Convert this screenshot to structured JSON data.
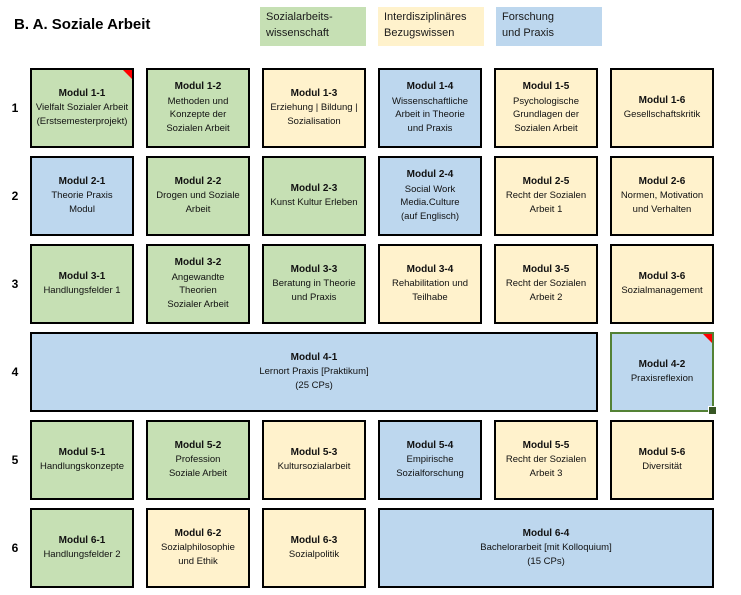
{
  "title": "B. A. Soziale Arbeit",
  "colors": {
    "green": "#c6e0b4",
    "yellow": "#fff2cc",
    "blue": "#bdd7ee",
    "border": "#000000",
    "selection": "#548235",
    "handle": "#375623",
    "marker": "#ff0000"
  },
  "legend": [
    {
      "color": "green",
      "lines": [
        "Sozialarbeits-",
        "wissenschaft"
      ]
    },
    {
      "color": "yellow",
      "lines": [
        "Interdisziplinäres",
        "Bezugswissen"
      ]
    },
    {
      "color": "blue",
      "lines": [
        "Forschung",
        "und Praxis"
      ]
    }
  ],
  "rows": [
    {
      "number": "1",
      "modules": [
        {
          "id": "Modul 1-1",
          "lines": [
            "Vielfalt Sozialer Arbeit",
            "(Erstsemesterprojekt)"
          ],
          "color": "green",
          "comment_marker": true
        },
        {
          "id": "Modul 1-2",
          "lines": [
            "Methoden und",
            "Konzepte der",
            "Sozialen Arbeit"
          ],
          "color": "green"
        },
        {
          "id": "Modul 1-3",
          "lines": [
            "Erziehung | Bildung |",
            "Sozialisation"
          ],
          "color": "yellow"
        },
        {
          "id": "Modul 1-4",
          "lines": [
            "Wissenschaftliche",
            "Arbeit in Theorie",
            "und Praxis"
          ],
          "color": "blue"
        },
        {
          "id": "Modul 1-5",
          "lines": [
            "Psychologische",
            "Grundlagen der",
            "Sozialen Arbeit"
          ],
          "color": "yellow"
        },
        {
          "id": "Modul 1-6",
          "lines": [
            "Gesellschaftskritik"
          ],
          "color": "yellow"
        }
      ]
    },
    {
      "number": "2",
      "modules": [
        {
          "id": "Modul 2-1",
          "lines": [
            "Theorie Praxis",
            "Modul"
          ],
          "color": "blue"
        },
        {
          "id": "Modul 2-2",
          "lines": [
            "Drogen und Soziale",
            "Arbeit"
          ],
          "color": "green"
        },
        {
          "id": "Modul 2-3",
          "lines": [
            "Kunst Kultur Erleben"
          ],
          "color": "green"
        },
        {
          "id": "Modul 2-4",
          "lines": [
            "Social Work",
            "Media.Culture",
            "(auf Englisch)"
          ],
          "color": "blue"
        },
        {
          "id": "Modul 2-5",
          "lines": [
            "Recht der Sozialen",
            "Arbeit 1"
          ],
          "color": "yellow"
        },
        {
          "id": "Modul 2-6",
          "lines": [
            "Normen, Motivation",
            "und Verhalten"
          ],
          "color": "yellow"
        }
      ]
    },
    {
      "number": "3",
      "modules": [
        {
          "id": "Modul 3-1",
          "lines": [
            "Handlungsfelder 1"
          ],
          "color": "green"
        },
        {
          "id": "Modul 3-2",
          "lines": [
            "Angewandte",
            "Theorien",
            "Sozialer Arbeit"
          ],
          "color": "green"
        },
        {
          "id": "Modul 3-3",
          "lines": [
            "Beratung in Theorie",
            "und Praxis"
          ],
          "color": "green"
        },
        {
          "id": "Modul 3-4",
          "lines": [
            "Rehabilitation und",
            "Teilhabe"
          ],
          "color": "yellow"
        },
        {
          "id": "Modul 3-5",
          "lines": [
            "Recht der Sozialen",
            "Arbeit 2"
          ],
          "color": "yellow"
        },
        {
          "id": "Modul 3-6",
          "lines": [
            "Sozialmanagement"
          ],
          "color": "yellow"
        }
      ]
    },
    {
      "number": "4",
      "modules": [
        {
          "id": "Modul 4-1",
          "lines": [
            "Lernort Praxis [Praktikum]",
            "(25 CPs)"
          ],
          "color": "blue",
          "span": 5
        },
        {
          "id": "Modul 4-2",
          "lines": [
            "Praxisreflexion"
          ],
          "color": "blue",
          "selected": true,
          "comment_marker": true
        }
      ]
    },
    {
      "number": "5",
      "modules": [
        {
          "id": "Modul 5-1",
          "lines": [
            "Handlungskonzepte"
          ],
          "color": "green"
        },
        {
          "id": "Modul 5-2",
          "lines": [
            "Profession",
            "Soziale Arbeit"
          ],
          "color": "green"
        },
        {
          "id": "Modul 5-3",
          "lines": [
            "Kultursozialarbeit"
          ],
          "color": "yellow"
        },
        {
          "id": "Modul 5-4",
          "lines": [
            "Empirische",
            "Sozialforschung"
          ],
          "color": "blue"
        },
        {
          "id": "Modul 5-5",
          "lines": [
            "Recht der Sozialen",
            "Arbeit 3"
          ],
          "color": "yellow"
        },
        {
          "id": "Modul 5-6",
          "lines": [
            "Diversität"
          ],
          "color": "yellow"
        }
      ]
    },
    {
      "number": "6",
      "modules": [
        {
          "id": "Modul 6-1",
          "lines": [
            "Handlungsfelder 2"
          ],
          "color": "green"
        },
        {
          "id": "Modul 6-2",
          "lines": [
            "Sozialphilosophie",
            "und Ethik"
          ],
          "color": "yellow"
        },
        {
          "id": "Modul 6-3",
          "lines": [
            "Sozialpolitik"
          ],
          "color": "yellow"
        },
        {
          "id": "Modul 6-4",
          "lines": [
            "Bachelorarbeit [mit Kolloquium]",
            "(15 CPs)"
          ],
          "color": "blue",
          "span": 3
        }
      ]
    }
  ]
}
